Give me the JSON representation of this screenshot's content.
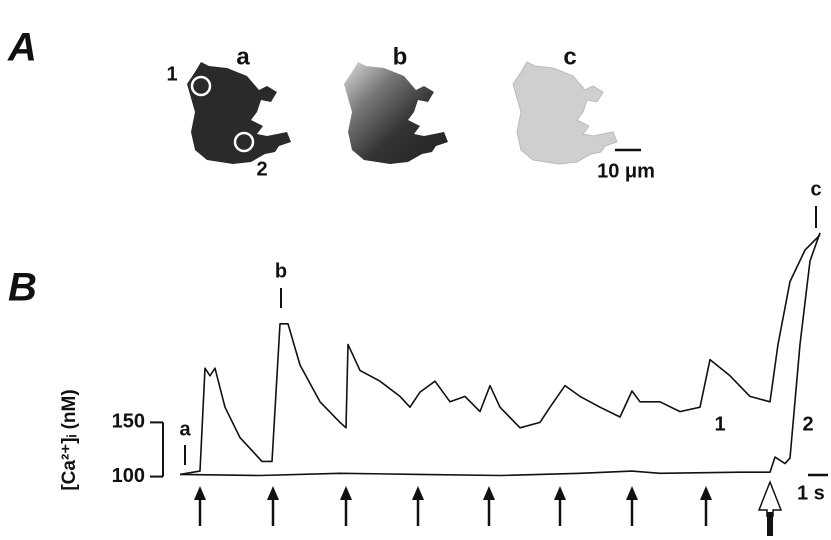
{
  "panel_a": {
    "label": "A",
    "images": [
      "a",
      "b",
      "c"
    ],
    "roi_labels": [
      "1",
      "2"
    ],
    "scale_bar": "10 μm"
  },
  "chart_data": {
    "type": "line",
    "label": "B",
    "ylabel": "[Ca²⁺]ᵢ (nM)",
    "ylim": [
      90,
      330
    ],
    "yticks": [
      100,
      150
    ],
    "xlim": [
      0,
      32.5
    ],
    "series": [
      {
        "name": "1",
        "color": "#111111",
        "x": [
          0,
          1,
          1.25,
          1.5,
          1.75,
          2.25,
          3,
          3.75,
          4.1,
          4.6,
          5,
          5.4,
          6,
          7,
          8,
          8.3,
          8.4,
          9,
          10,
          11,
          11.5,
          12,
          12.75,
          13.5,
          14.25,
          15,
          15.5,
          16,
          17,
          18,
          18.5,
          19.25,
          20,
          21,
          22,
          22.6,
          23,
          24,
          25,
          26,
          26.5,
          27.5,
          28.5,
          29.5,
          29.9,
          30.5,
          31.25,
          32
        ],
        "values": [
          102,
          105,
          200,
          193,
          200,
          164,
          136,
          121,
          114,
          114,
          241,
          241,
          203,
          169,
          150,
          145,
          222,
          198,
          188,
          174,
          164,
          178,
          188,
          169,
          174,
          160,
          184,
          164,
          145,
          150,
          164,
          184,
          174,
          164,
          155,
          179,
          169,
          169,
          160,
          164,
          208,
          193,
          174,
          169,
          222,
          280,
          309,
          323
        ]
      },
      {
        "name": "2",
        "color": "#111111",
        "x": [
          0,
          4,
          8,
          12,
          16,
          20,
          22.6,
          24,
          28,
          29.5,
          29.75,
          30.25,
          30.5,
          31,
          31.5,
          32
        ],
        "values": [
          102,
          101,
          103,
          102,
          101,
          103,
          105,
          103,
          104,
          104,
          118,
          112,
          117,
          222,
          299,
          325
        ]
      }
    ],
    "annotations": [
      "a",
      "b",
      "c"
    ],
    "stimulus_times": [
      1,
      4.65,
      8.3,
      11.9,
      15.45,
      19,
      22.6,
      26.3
    ],
    "open_stimulus_time": 29.5,
    "scale_bar": {
      "value": 1,
      "label": "1 s"
    }
  }
}
